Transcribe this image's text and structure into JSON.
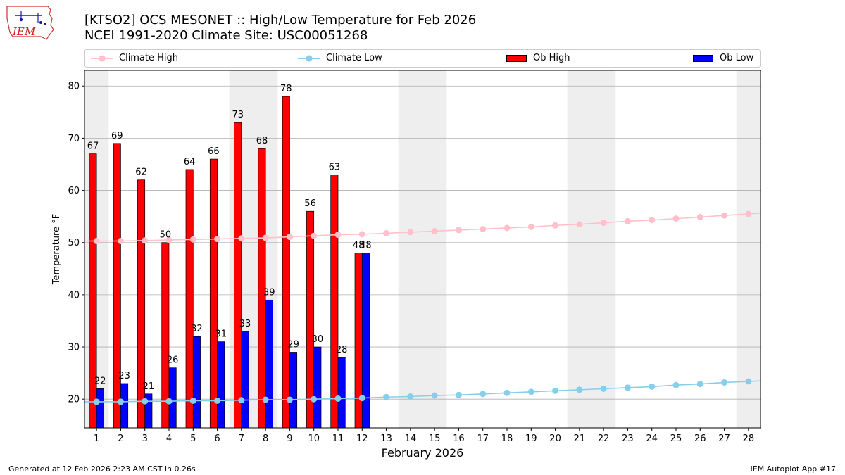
{
  "header": {
    "title_line1": "[KTSO2] OCS MESONET :: High/Low Temperature for Feb 2026",
    "title_line2": "NCEI 1991-2020 Climate Site: USC00051268"
  },
  "logo": {
    "text": "IEM"
  },
  "legend": {
    "climate_high": "Climate High",
    "climate_low": "Climate Low",
    "ob_high": "Ob High",
    "ob_low": "Ob Low"
  },
  "footer": {
    "left": "Generated at 12 Feb 2026 2:23 AM CST in 0.26s",
    "right": "IEM Autoplot App #17"
  },
  "colors": {
    "ob_high": "#ff0000",
    "ob_low": "#0000ff",
    "climate_high": "#ffc0cb",
    "climate_low": "#87ceeb",
    "weekend_band": "#eeeeee",
    "grid": "#b0b0b0"
  },
  "chart_data": {
    "type": "bar",
    "xlabel": "February 2026",
    "ylabel": "Temperature °F",
    "xlim": [
      0.5,
      28.5
    ],
    "ylim": [
      14.5,
      83
    ],
    "yticks": [
      20,
      30,
      40,
      50,
      60,
      70,
      80
    ],
    "days": [
      1,
      2,
      3,
      4,
      5,
      6,
      7,
      8,
      9,
      10,
      11,
      12,
      13,
      14,
      15,
      16,
      17,
      18,
      19,
      20,
      21,
      22,
      23,
      24,
      25,
      26,
      27,
      28
    ],
    "weekend_day_pairs": [
      [
        0,
        1
      ],
      [
        7,
        8
      ],
      [
        14,
        15
      ],
      [
        21,
        22
      ],
      [
        28,
        29
      ]
    ],
    "ob_high": [
      67,
      69,
      62,
      50,
      64,
      66,
      73,
      68,
      78,
      56,
      63,
      48
    ],
    "ob_low": [
      22,
      23,
      21,
      26,
      32,
      31,
      33,
      39,
      29,
      30,
      28,
      48
    ],
    "ob_high_labels": [
      "67",
      "69",
      "62",
      "50",
      "64",
      "66",
      "73",
      "68",
      "78",
      "56",
      "63",
      "48"
    ],
    "ob_low_labels": [
      "22",
      "23",
      "21",
      "26",
      "32",
      "31",
      "33",
      "39",
      "29",
      "30",
      "28",
      "48"
    ],
    "climate_high": [
      50.3,
      50.3,
      50.4,
      50.5,
      50.6,
      50.7,
      50.8,
      50.9,
      51.1,
      51.3,
      51.5,
      51.6,
      51.8,
      52.0,
      52.2,
      52.4,
      52.6,
      52.8,
      53.0,
      53.3,
      53.5,
      53.8,
      54.1,
      54.3,
      54.6,
      54.9,
      55.2,
      55.5
    ],
    "climate_low": [
      19.5,
      19.5,
      19.6,
      19.6,
      19.7,
      19.7,
      19.8,
      19.9,
      19.9,
      20.0,
      20.1,
      20.2,
      20.4,
      20.5,
      20.7,
      20.8,
      21.0,
      21.2,
      21.4,
      21.6,
      21.8,
      22.0,
      22.2,
      22.4,
      22.7,
      22.9,
      23.2,
      23.4
    ]
  }
}
